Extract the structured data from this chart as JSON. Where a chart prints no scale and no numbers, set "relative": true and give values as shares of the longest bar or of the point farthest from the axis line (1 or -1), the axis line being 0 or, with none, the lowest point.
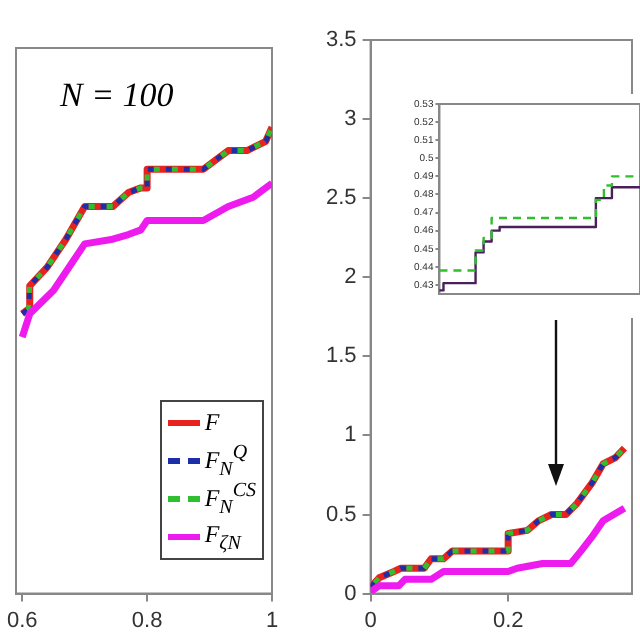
{
  "chart_data": [
    {
      "type": "line",
      "relative": true,
      "annotations": [
        "N = 100"
      ],
      "xlim": [
        0.59,
        1
      ],
      "xticks": [
        0.6,
        0.8,
        1
      ],
      "legend": "bottom right",
      "series": [
        {
          "name": "F",
          "color": "#e8231f",
          "line_style": "solid",
          "x": [
            0.6,
            0.61,
            0.612,
            0.64,
            0.67,
            0.7,
            0.745,
            0.77,
            0.79,
            0.8,
            0.8,
            0.89,
            0.93,
            0.96,
            0.99,
            1
          ],
          "values": [
            0.6,
            0.61,
            0.66,
            0.7,
            0.76,
            0.83,
            0.83,
            0.86,
            0.87,
            0.87,
            0.91,
            0.91,
            0.95,
            0.95,
            0.97,
            1
          ]
        },
        {
          "name": "F$_{N}$$^{Q}$",
          "color": "#1c2fa8",
          "line_style": "dashed",
          "x": [
            0.6,
            0.61,
            0.612,
            0.64,
            0.67,
            0.7,
            0.745,
            0.77,
            0.79,
            0.8,
            0.8,
            0.89,
            0.93,
            0.96,
            0.99,
            1
          ],
          "values": [
            0.6,
            0.61,
            0.66,
            0.7,
            0.76,
            0.83,
            0.83,
            0.86,
            0.87,
            0.87,
            0.91,
            0.91,
            0.95,
            0.95,
            0.97,
            1
          ]
        },
        {
          "name": "F$_{N}$$^{CS}$",
          "color": "#2fbf2f",
          "line_style": "dashed",
          "x": [
            0.6,
            0.61,
            0.612,
            0.64,
            0.67,
            0.7,
            0.745,
            0.77,
            0.79,
            0.8,
            0.8,
            0.89,
            0.93,
            0.96,
            0.99,
            1
          ],
          "values": [
            0.6,
            0.61,
            0.66,
            0.7,
            0.76,
            0.83,
            0.83,
            0.86,
            0.87,
            0.87,
            0.91,
            0.91,
            0.95,
            0.95,
            0.97,
            1
          ]
        },
        {
          "name": "F$_{ζN}$",
          "color": "#ee1bee",
          "line_style": "solid",
          "x": [
            0.6,
            0.612,
            0.65,
            0.7,
            0.745,
            0.77,
            0.79,
            0.8,
            0.89,
            0.93,
            0.97,
            1
          ],
          "values": [
            0.55,
            0.6,
            0.65,
            0.75,
            0.76,
            0.77,
            0.78,
            0.8,
            0.8,
            0.83,
            0.85,
            0.88
          ]
        }
      ]
    },
    {
      "type": "line",
      "xlim": [
        0,
        0.38
      ],
      "xticks": [
        0,
        0.2
      ],
      "ylim": [
        0,
        3.5
      ],
      "yticks": [
        0,
        0.5,
        1,
        1.5,
        2,
        2.5,
        3,
        3.5
      ],
      "series": [
        {
          "color": "#e8231f",
          "line_style": "solid",
          "x": [
            0,
            0.0125,
            0.034,
            0.044,
            0.078,
            0.088,
            0.106,
            0.119,
            0.2,
            0.2,
            0.228,
            0.244,
            0.263,
            0.284,
            0.3,
            0.322,
            0.338,
            0.356,
            0.369
          ],
          "values": [
            0.04,
            0.1,
            0.14,
            0.16,
            0.16,
            0.22,
            0.22,
            0.27,
            0.27,
            0.38,
            0.4,
            0.46,
            0.5,
            0.5,
            0.57,
            0.7,
            0.82,
            0.86,
            0.92
          ]
        },
        {
          "color": "#1c2fa8",
          "line_style": "dashed",
          "x": [
            0,
            0.0125,
            0.034,
            0.044,
            0.078,
            0.088,
            0.106,
            0.119,
            0.2,
            0.2,
            0.228,
            0.244,
            0.263,
            0.284,
            0.3,
            0.322,
            0.338,
            0.356,
            0.369
          ],
          "values": [
            0.04,
            0.1,
            0.14,
            0.16,
            0.16,
            0.22,
            0.22,
            0.27,
            0.27,
            0.38,
            0.4,
            0.46,
            0.5,
            0.5,
            0.57,
            0.7,
            0.82,
            0.86,
            0.92
          ]
        },
        {
          "color": "#2fbf2f",
          "line_style": "dashed",
          "x": [
            0,
            0.0125,
            0.034,
            0.044,
            0.078,
            0.088,
            0.106,
            0.119,
            0.2,
            0.2,
            0.228,
            0.244,
            0.263,
            0.284,
            0.3,
            0.322,
            0.338,
            0.356,
            0.369
          ],
          "values": [
            0.04,
            0.1,
            0.14,
            0.16,
            0.16,
            0.22,
            0.22,
            0.27,
            0.27,
            0.38,
            0.4,
            0.46,
            0.5,
            0.5,
            0.57,
            0.7,
            0.82,
            0.86,
            0.92
          ]
        },
        {
          "color": "#ee1bee",
          "line_style": "solid",
          "x": [
            0,
            0.0125,
            0.041,
            0.05,
            0.088,
            0.106,
            0.2,
            0.213,
            0.25,
            0.291,
            0.306,
            0.322,
            0.338,
            0.369
          ],
          "values": [
            0.01,
            0.05,
            0.05,
            0.09,
            0.09,
            0.14,
            0.14,
            0.16,
            0.19,
            0.19,
            0.27,
            0.36,
            0.46,
            0.54
          ]
        }
      ]
    },
    {
      "type": "step",
      "categories": [
        null,
        null,
        null,
        null,
        null,
        null,
        null,
        null,
        null,
        null,
        null,
        null,
        null,
        null,
        null,
        null,
        null,
        null,
        null,
        null,
        null,
        null,
        null,
        null,
        null,
        null
      ],
      "ylim": [
        0.425,
        0.53
      ],
      "yticks": [
        0.43,
        0.44,
        0.45,
        0.46,
        0.47,
        0.48,
        0.49,
        0.5,
        0.51,
        0.52,
        0.53
      ],
      "tick_labels": "y",
      "series": [
        {
          "color": "#4a1f5a",
          "line_style": "solid",
          "values": [
            0.427,
            0.431,
            0.431,
            0.431,
            0.431,
            0.448,
            0.454,
            0.46,
            0.462,
            0.462,
            0.462,
            0.462,
            0.462,
            0.462,
            0.462,
            0.462,
            0.462,
            0.462,
            0.462,
            0.462,
            0.478,
            0.478,
            0.484,
            0.484,
            0.484,
            0.484
          ]
        },
        {
          "color": "#2fbf2f",
          "line_style": "dashed",
          "values": [
            0.438,
            0.438,
            0.438,
            0.438,
            0.438,
            0.449,
            0.456,
            0.467,
            0.467,
            0.467,
            0.467,
            0.467,
            0.467,
            0.467,
            0.467,
            0.467,
            0.467,
            0.467,
            0.467,
            0.467,
            0.477,
            0.485,
            0.49,
            0.49,
            0.49,
            0.49
          ]
        }
      ]
    }
  ]
}
